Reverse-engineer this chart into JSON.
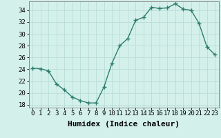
{
  "x": [
    0,
    1,
    2,
    3,
    4,
    5,
    6,
    7,
    8,
    9,
    10,
    11,
    12,
    13,
    14,
    15,
    16,
    17,
    18,
    19,
    20,
    21,
    22,
    23
  ],
  "y": [
    24.2,
    24.1,
    23.7,
    21.5,
    20.5,
    19.3,
    18.7,
    18.3,
    18.3,
    21.0,
    25.0,
    28.0,
    29.2,
    32.3,
    32.8,
    34.5,
    34.3,
    34.4,
    35.1,
    34.2,
    34.0,
    31.8,
    27.8,
    26.5
  ],
  "line_color": "#2d7d6e",
  "marker": "+",
  "marker_size": 4,
  "bg_color": "#d4f0eb",
  "grid_color": "#b8ddd8",
  "xlabel": "Humidex (Indice chaleur)",
  "ylim": [
    17.5,
    35.5
  ],
  "xlim": [
    -0.5,
    23.5
  ],
  "yticks": [
    18,
    20,
    22,
    24,
    26,
    28,
    30,
    32,
    34
  ],
  "xticks": [
    0,
    1,
    2,
    3,
    4,
    5,
    6,
    7,
    8,
    9,
    10,
    11,
    12,
    13,
    14,
    15,
    16,
    17,
    18,
    19,
    20,
    21,
    22,
    23
  ],
  "tick_fontsize": 6.5,
  "xlabel_fontsize": 8,
  "line_width": 1.0,
  "marker_edge_width": 1.0
}
